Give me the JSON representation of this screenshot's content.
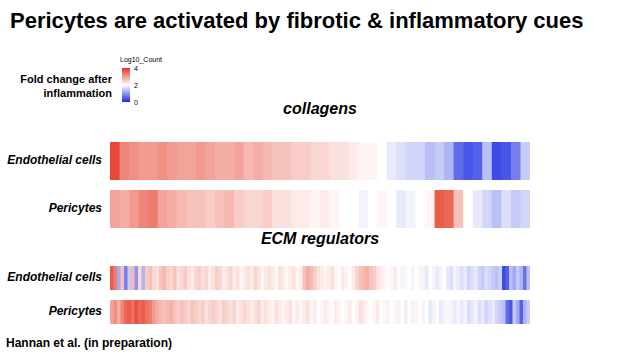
{
  "title": "Pericytes are activated by fibrotic & inflammatory cues",
  "footer": "Hannan et al. (in preparation)",
  "colorbar": {
    "label": "Fold change after inflammation",
    "title": "Log10_Count",
    "range": [
      0,
      4
    ],
    "ticks": [
      0,
      2,
      4
    ]
  },
  "chart_data": [
    {
      "type": "heatmap",
      "title": "collagens",
      "tick_labels": false,
      "rows": [
        "Endothelial cells",
        "Pericytes"
      ],
      "cells": [
        [
          3.8,
          3.2,
          3.1,
          3.0,
          3.0,
          3.1,
          3.0,
          2.9,
          2.9,
          3.0,
          2.9,
          2.8,
          2.8,
          2.9,
          2.7,
          2.8,
          2.7,
          2.6,
          2.6,
          2.5,
          2.5,
          2.4,
          2.4,
          2.3,
          2.3,
          2.2,
          2.1,
          2.1,
          2.0,
          1.8,
          1.7,
          1.6,
          1.6,
          1.4,
          1.5,
          1.3,
          0.6,
          0.4,
          0.5,
          1.4,
          0.3,
          0.4,
          0.8,
          1.5
        ],
        [
          2.9,
          2.8,
          3.0,
          3.2,
          3.3,
          2.9,
          2.8,
          2.7,
          2.6,
          2.6,
          2.5,
          2.6,
          2.7,
          2.5,
          2.4,
          2.4,
          2.5,
          2.3,
          2.3,
          2.2,
          2.2,
          2.1,
          2.2,
          2.1,
          2.0,
          2.0,
          1.9,
          2.0,
          2.1,
          2.0,
          1.8,
          1.9,
          2.0,
          2.1,
          3.6,
          3.5,
          2.6,
          2.0,
          1.8,
          1.6,
          1.4,
          1.7,
          1.5,
          1.6
        ]
      ]
    },
    {
      "type": "heatmap",
      "title": "ECM regulators",
      "tick_labels": false,
      "rows": [
        "Endothelial cells",
        "Pericytes"
      ],
      "cells": [
        [
          3.6,
          3.3,
          1.2,
          2.6,
          0.8,
          1.5,
          2.7,
          1.0,
          2.4,
          1.3,
          2.5,
          2.6,
          2.4,
          2.3,
          2.6,
          2.7,
          2.5,
          2.4,
          2.6,
          2.3,
          2.4,
          2.5,
          2.3,
          2.2,
          2.4,
          2.5,
          2.3,
          2.4,
          2.2,
          2.3,
          2.5,
          2.4,
          2.2,
          2.3,
          2.4,
          2.2,
          2.3,
          2.1,
          2.2,
          2.3,
          2.2,
          2.4,
          2.3,
          2.1,
          2.2,
          2.3,
          2.2,
          2.1,
          2.3,
          2.2,
          2.1,
          2.2,
          2.3,
          2.1,
          2.2,
          2.6,
          2.8,
          2.7,
          2.5,
          2.3,
          2.2,
          2.1,
          2.2,
          2.3,
          2.1,
          2.0,
          2.2,
          2.1,
          2.0,
          2.2,
          2.4,
          2.6,
          2.7,
          2.8,
          2.6,
          2.5,
          2.3,
          2.2,
          2.1,
          2.0,
          2.1,
          2.2,
          2.0,
          1.9,
          2.1,
          2.0,
          1.9,
          2.0,
          2.1,
          1.9,
          1.8,
          2.0,
          1.9,
          1.8,
          1.9,
          2.0,
          1.8,
          1.7,
          1.9,
          1.8,
          1.7,
          1.8,
          1.6,
          1.7,
          1.8,
          1.6,
          1.5,
          1.7,
          1.6,
          1.5,
          1.4,
          1.6,
          0.3,
          0.5,
          1.4,
          1.2,
          1.5,
          1.3,
          0.7,
          1.4
        ],
        [
          2.9,
          3.1,
          2.8,
          3.2,
          3.5,
          3.6,
          3.4,
          3.7,
          3.5,
          3.6,
          3.4,
          3.3,
          3.0,
          2.8,
          2.7,
          2.6,
          2.7,
          2.8,
          2.6,
          2.5,
          2.6,
          2.5,
          2.4,
          2.6,
          2.5,
          2.4,
          2.5,
          2.3,
          2.4,
          2.5,
          2.4,
          2.3,
          2.5,
          2.4,
          2.3,
          2.4,
          2.2,
          2.3,
          2.4,
          2.3,
          2.2,
          2.3,
          2.4,
          2.2,
          2.3,
          2.2,
          2.1,
          2.3,
          2.2,
          2.1,
          2.2,
          2.3,
          2.1,
          2.2,
          2.1,
          2.2,
          2.3,
          2.1,
          2.2,
          2.0,
          2.1,
          2.2,
          2.1,
          2.0,
          2.2,
          2.1,
          2.0,
          2.1,
          2.2,
          2.0,
          2.1,
          2.3,
          2.2,
          2.1,
          2.0,
          2.1,
          2.2,
          2.0,
          2.1,
          1.9,
          2.0,
          2.1,
          1.9,
          2.0,
          2.2,
          2.0,
          1.9,
          2.1,
          2.0,
          1.9,
          2.0,
          1.8,
          1.9,
          2.0,
          1.8,
          1.9,
          2.1,
          1.9,
          1.8,
          1.9,
          1.8,
          1.9,
          1.7,
          1.8,
          1.9,
          1.7,
          1.8,
          1.6,
          1.7,
          1.8,
          1.6,
          1.5,
          1.4,
          0.6,
          0.4,
          1.5,
          1.2,
          0.5,
          1.3,
          1.5
        ]
      ]
    }
  ]
}
